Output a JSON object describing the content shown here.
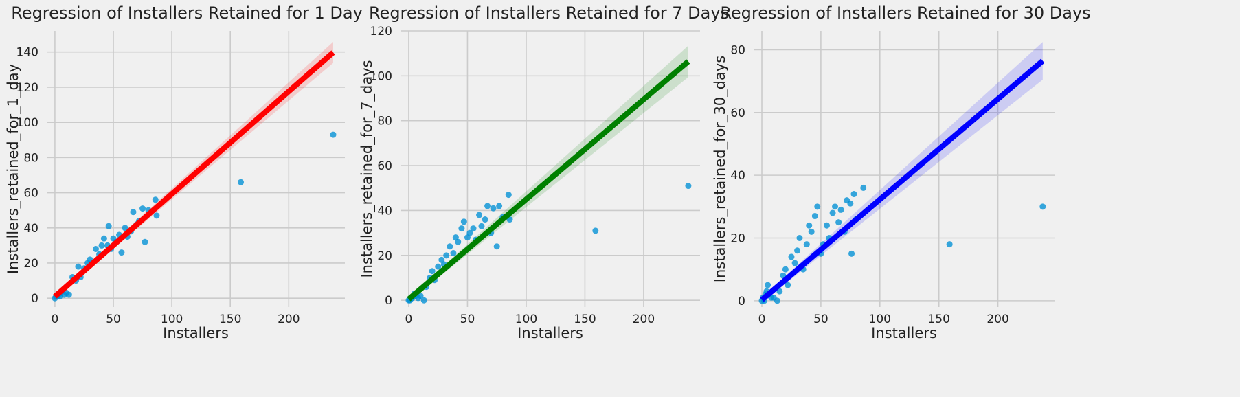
{
  "figure": {
    "background": "#f0f0f0",
    "grid_color": "#cbcbcb",
    "text_color": "#222222"
  },
  "chart_data": [
    {
      "type": "scatter",
      "title": "Regression of Installers Retained for 1 Day",
      "xlabel": "Installers",
      "ylabel": "Installers_retained_for_1_day",
      "xlim": [
        -7,
        248
      ],
      "ylim": [
        -5,
        152
      ],
      "xticks": [
        0,
        50,
        100,
        150,
        200
      ],
      "yticks": [
        0,
        20,
        40,
        60,
        80,
        100,
        120,
        140
      ],
      "point_color": "#008fd5",
      "line_color": "#ff0000",
      "regression": {
        "slope": 0.583,
        "intercept": 1.0,
        "x_range": [
          0,
          238
        ],
        "ci_at_0": 1.0,
        "ci_at_max": 6.0
      },
      "points": [
        [
          0,
          0
        ],
        [
          1,
          1
        ],
        [
          2,
          1
        ],
        [
          3,
          2
        ],
        [
          4,
          1
        ],
        [
          5,
          3
        ],
        [
          6,
          4
        ],
        [
          8,
          2
        ],
        [
          10,
          3
        ],
        [
          12,
          2
        ],
        [
          15,
          12
        ],
        [
          18,
          10
        ],
        [
          20,
          18
        ],
        [
          22,
          12
        ],
        [
          25,
          17
        ],
        [
          28,
          20
        ],
        [
          30,
          22
        ],
        [
          32,
          20
        ],
        [
          35,
          28
        ],
        [
          38,
          25
        ],
        [
          40,
          30
        ],
        [
          42,
          34
        ],
        [
          45,
          30
        ],
        [
          46,
          41
        ],
        [
          48,
          28
        ],
        [
          50,
          34
        ],
        [
          52,
          32
        ],
        [
          55,
          36
        ],
        [
          57,
          26
        ],
        [
          60,
          40
        ],
        [
          62,
          35
        ],
        [
          65,
          38
        ],
        [
          67,
          49
        ],
        [
          70,
          42
        ],
        [
          72,
          44
        ],
        [
          75,
          51
        ],
        [
          77,
          32
        ],
        [
          80,
          50
        ],
        [
          86,
          56
        ],
        [
          87,
          47
        ],
        [
          159,
          66
        ],
        [
          238,
          93
        ]
      ]
    },
    {
      "type": "scatter",
      "title": "Regression of Installers Retained for 7 Days",
      "xlabel": "Installers",
      "ylabel": "Installers_retained_for_7_days",
      "xlim": [
        -7,
        248
      ],
      "ylim": [
        -3,
        120
      ],
      "xticks": [
        0,
        50,
        100,
        150,
        200
      ],
      "yticks": [
        0,
        20,
        40,
        60,
        80,
        100,
        120
      ],
      "point_color": "#008fd5",
      "line_color": "#008000",
      "regression": {
        "slope": 0.445,
        "intercept": 0.5,
        "x_range": [
          0,
          238
        ],
        "ci_at_0": 1.0,
        "ci_at_max": 7.0
      },
      "points": [
        [
          0,
          0
        ],
        [
          1,
          0
        ],
        [
          2,
          1
        ],
        [
          3,
          1
        ],
        [
          4,
          2
        ],
        [
          5,
          3
        ],
        [
          6,
          2
        ],
        [
          8,
          1
        ],
        [
          10,
          2
        ],
        [
          13,
          0
        ],
        [
          15,
          6
        ],
        [
          18,
          10
        ],
        [
          20,
          13
        ],
        [
          22,
          9
        ],
        [
          25,
          15
        ],
        [
          28,
          18
        ],
        [
          30,
          16
        ],
        [
          32,
          20
        ],
        [
          35,
          24
        ],
        [
          38,
          21
        ],
        [
          40,
          28
        ],
        [
          42,
          26
        ],
        [
          45,
          32
        ],
        [
          47,
          35
        ],
        [
          50,
          28
        ],
        [
          52,
          30
        ],
        [
          55,
          32
        ],
        [
          57,
          27
        ],
        [
          60,
          38
        ],
        [
          62,
          33
        ],
        [
          65,
          36
        ],
        [
          67,
          42
        ],
        [
          70,
          30
        ],
        [
          72,
          41
        ],
        [
          75,
          24
        ],
        [
          77,
          42
        ],
        [
          80,
          37
        ],
        [
          85,
          47
        ],
        [
          86,
          36
        ],
        [
          159,
          31
        ],
        [
          238,
          51
        ]
      ]
    },
    {
      "type": "scatter",
      "title": "Regression of Installers Retained for 30 Days",
      "xlabel": "Installers",
      "ylabel": "Installers_retained_for_30_days",
      "xlim": [
        -7,
        248
      ],
      "ylim": [
        -2,
        86
      ],
      "xticks": [
        0,
        50,
        100,
        150,
        200
      ],
      "yticks": [
        0,
        20,
        40,
        60,
        80
      ],
      "point_color": "#008fd5",
      "line_color": "#0000ff",
      "regression": {
        "slope": 0.32,
        "intercept": 0.3,
        "x_range": [
          0,
          238
        ],
        "ci_at_0": 0.8,
        "ci_at_max": 6.0
      },
      "points": [
        [
          0,
          0
        ],
        [
          1,
          1
        ],
        [
          2,
          0
        ],
        [
          3,
          2
        ],
        [
          4,
          3
        ],
        [
          5,
          5
        ],
        [
          6,
          2
        ],
        [
          8,
          1
        ],
        [
          10,
          1
        ],
        [
          13,
          0
        ],
        [
          15,
          3
        ],
        [
          18,
          8
        ],
        [
          20,
          10
        ],
        [
          22,
          5
        ],
        [
          25,
          14
        ],
        [
          28,
          12
        ],
        [
          30,
          16
        ],
        [
          32,
          20
        ],
        [
          35,
          10
        ],
        [
          38,
          18
        ],
        [
          40,
          24
        ],
        [
          42,
          22
        ],
        [
          45,
          27
        ],
        [
          47,
          30
        ],
        [
          50,
          15
        ],
        [
          52,
          18
        ],
        [
          55,
          24
        ],
        [
          57,
          20
        ],
        [
          60,
          28
        ],
        [
          62,
          30
        ],
        [
          65,
          25
        ],
        [
          67,
          29
        ],
        [
          70,
          22
        ],
        [
          72,
          32
        ],
        [
          75,
          31
        ],
        [
          76,
          15
        ],
        [
          78,
          34
        ],
        [
          80,
          26
        ],
        [
          86,
          36
        ],
        [
          159,
          18
        ],
        [
          238,
          30
        ]
      ]
    }
  ]
}
